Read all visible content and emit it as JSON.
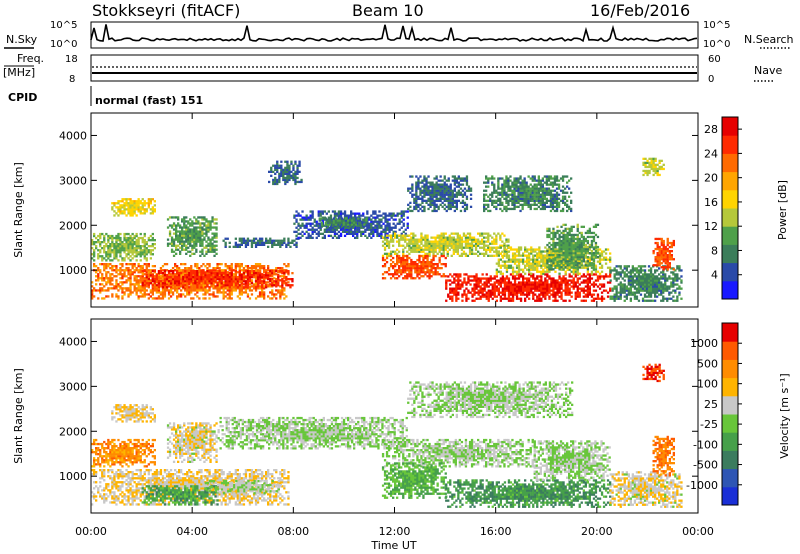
{
  "header": {
    "station": "Stokkseyri (fitACF)",
    "beam": "Beam 10",
    "date": "16/Feb/2016"
  },
  "top_panels": {
    "nsky_label": "N.Sky",
    "nsearch_label": "N.Search",
    "freq_label": "Freq.",
    "freq_unit": "[MHz]",
    "nave_label": "Nave",
    "cpid_label": "CPID",
    "cpid_value": "normal (fast) 151",
    "noise_ticks_left": [
      "10^5",
      "10^0"
    ],
    "noise_ticks_right": [
      "10^5",
      "10^0"
    ],
    "freq_ticks_left": [
      "18",
      "8"
    ],
    "nave_ticks_right": [
      "60",
      "0"
    ]
  },
  "chart_data": [
    {
      "type": "heatmap",
      "name": "power",
      "ylabel": "Slant Range [km]",
      "ylim": [
        180,
        4500
      ],
      "yticks": [
        "1000",
        "2000",
        "3000",
        "4000"
      ],
      "xlim": [
        0,
        24
      ],
      "xticks": [
        "00:00",
        "04:00",
        "08:00",
        "12:00",
        "16:00",
        "20:00",
        "00:00"
      ],
      "colorbar": {
        "label": "Power [dB]",
        "range": [
          0,
          30
        ],
        "ticks": [
          "4",
          "8",
          "12",
          "16",
          "20",
          "24",
          "28"
        ],
        "colors": [
          "#1919ff",
          "#2a4aa8",
          "#3b7d5a",
          "#4fa04a",
          "#b5c83a",
          "#ffd400",
          "#ffa500",
          "#ff6a00",
          "#ff2a00",
          "#e60000"
        ]
      },
      "blobs": [
        {
          "t0": 0.0,
          "t1": 7.8,
          "r0": 350,
          "r1": 1150,
          "v": 22
        },
        {
          "t0": 0.0,
          "t1": 2.5,
          "r0": 1200,
          "r1": 1800,
          "v": 12
        },
        {
          "t0": 2.0,
          "t1": 8.0,
          "r0": 600,
          "r1": 1000,
          "v": 26
        },
        {
          "t0": 3.0,
          "t1": 5.0,
          "r0": 1300,
          "r1": 2200,
          "v": 10
        },
        {
          "t0": 5.2,
          "t1": 8.2,
          "r0": 1500,
          "r1": 1700,
          "v": 6
        },
        {
          "t0": 8.0,
          "t1": 12.5,
          "r0": 1700,
          "r1": 2300,
          "v": 5
        },
        {
          "t0": 9.0,
          "t1": 11.0,
          "r0": 1950,
          "r1": 2150,
          "v": 8
        },
        {
          "t0": 11.5,
          "t1": 16.5,
          "r0": 1300,
          "r1": 1800,
          "v": 14
        },
        {
          "t0": 11.5,
          "t1": 14.0,
          "r0": 800,
          "r1": 1300,
          "v": 24
        },
        {
          "t0": 14.0,
          "t1": 20.5,
          "r0": 300,
          "r1": 900,
          "v": 27
        },
        {
          "t0": 16.0,
          "t1": 20.5,
          "r0": 900,
          "r1": 1500,
          "v": 14
        },
        {
          "t0": 18.0,
          "t1": 20.0,
          "r0": 1000,
          "r1": 2000,
          "v": 10
        },
        {
          "t0": 20.5,
          "t1": 23.3,
          "r0": 300,
          "r1": 1100,
          "v": 8
        },
        {
          "t0": 22.2,
          "t1": 23.0,
          "r0": 1000,
          "r1": 1700,
          "v": 24
        },
        {
          "t0": 21.8,
          "t1": 22.6,
          "r0": 3100,
          "r1": 3500,
          "v": 14
        },
        {
          "t0": 7.0,
          "t1": 8.3,
          "r0": 2900,
          "r1": 3400,
          "v": 6
        },
        {
          "t0": 12.5,
          "t1": 15.0,
          "r0": 2300,
          "r1": 3100,
          "v": 6
        },
        {
          "t0": 15.5,
          "t1": 19.0,
          "r0": 2300,
          "r1": 3100,
          "v": 8
        },
        {
          "t0": 0.8,
          "t1": 2.5,
          "r0": 2200,
          "r1": 2600,
          "v": 16
        }
      ]
    },
    {
      "type": "heatmap",
      "name": "velocity",
      "ylabel": "Slant Range [km]",
      "ylim": [
        180,
        4500
      ],
      "yticks": [
        "1000",
        "2000",
        "3000",
        "4000"
      ],
      "xlim": [
        0,
        24
      ],
      "xticks": [
        "00:00",
        "04:00",
        "08:00",
        "12:00",
        "16:00",
        "20:00",
        "00:00"
      ],
      "xlabel": "Time UT",
      "colorbar": {
        "label": "Velocity [m s⁻¹]",
        "range": [
          -1000,
          1000
        ],
        "ticks": [
          "1000",
          "500",
          "100",
          "25",
          "-25",
          "-100",
          "-500",
          "-1000"
        ],
        "colors": [
          "#1a2fd6",
          "#2e55b4",
          "#3b7c5e",
          "#46a04a",
          "#68c63a",
          "#c8c8c8",
          "#ffb400",
          "#ff8c00",
          "#ff5a00",
          "#e60000"
        ]
      },
      "blobs": [
        {
          "t0": 0.0,
          "t1": 7.8,
          "r0": 350,
          "r1": 1150,
          "v": 200
        },
        {
          "t0": 2.0,
          "t1": 5.0,
          "r0": 350,
          "r1": 800,
          "v": -300
        },
        {
          "t0": 4.5,
          "t1": 7.5,
          "r0": 600,
          "r1": 900,
          "v": 0
        },
        {
          "t0": 0.0,
          "t1": 2.5,
          "r0": 1200,
          "r1": 1800,
          "v": 500
        },
        {
          "t0": 3.0,
          "t1": 5.0,
          "r0": 1300,
          "r1": 2200,
          "v": 150
        },
        {
          "t0": 5.0,
          "t1": 12.5,
          "r0": 1600,
          "r1": 2300,
          "v": 0
        },
        {
          "t0": 11.5,
          "t1": 17.5,
          "r0": 1200,
          "r1": 1800,
          "v": 0
        },
        {
          "t0": 11.5,
          "t1": 14.0,
          "r0": 500,
          "r1": 1300,
          "v": -200
        },
        {
          "t0": 14.0,
          "t1": 20.5,
          "r0": 300,
          "r1": 900,
          "v": -350
        },
        {
          "t0": 17.5,
          "t1": 20.5,
          "r0": 900,
          "r1": 1800,
          "v": 0
        },
        {
          "t0": 20.5,
          "t1": 23.3,
          "r0": 300,
          "r1": 1100,
          "v": 150
        },
        {
          "t0": 22.2,
          "t1": 23.0,
          "r0": 1000,
          "r1": 1900,
          "v": 600
        },
        {
          "t0": 21.8,
          "t1": 22.6,
          "r0": 3100,
          "r1": 3500,
          "v": 800
        },
        {
          "t0": 12.5,
          "t1": 19.0,
          "r0": 2300,
          "r1": 3100,
          "v": 0
        },
        {
          "t0": 0.8,
          "t1": 2.5,
          "r0": 2200,
          "r1": 2600,
          "v": 200
        }
      ]
    }
  ]
}
